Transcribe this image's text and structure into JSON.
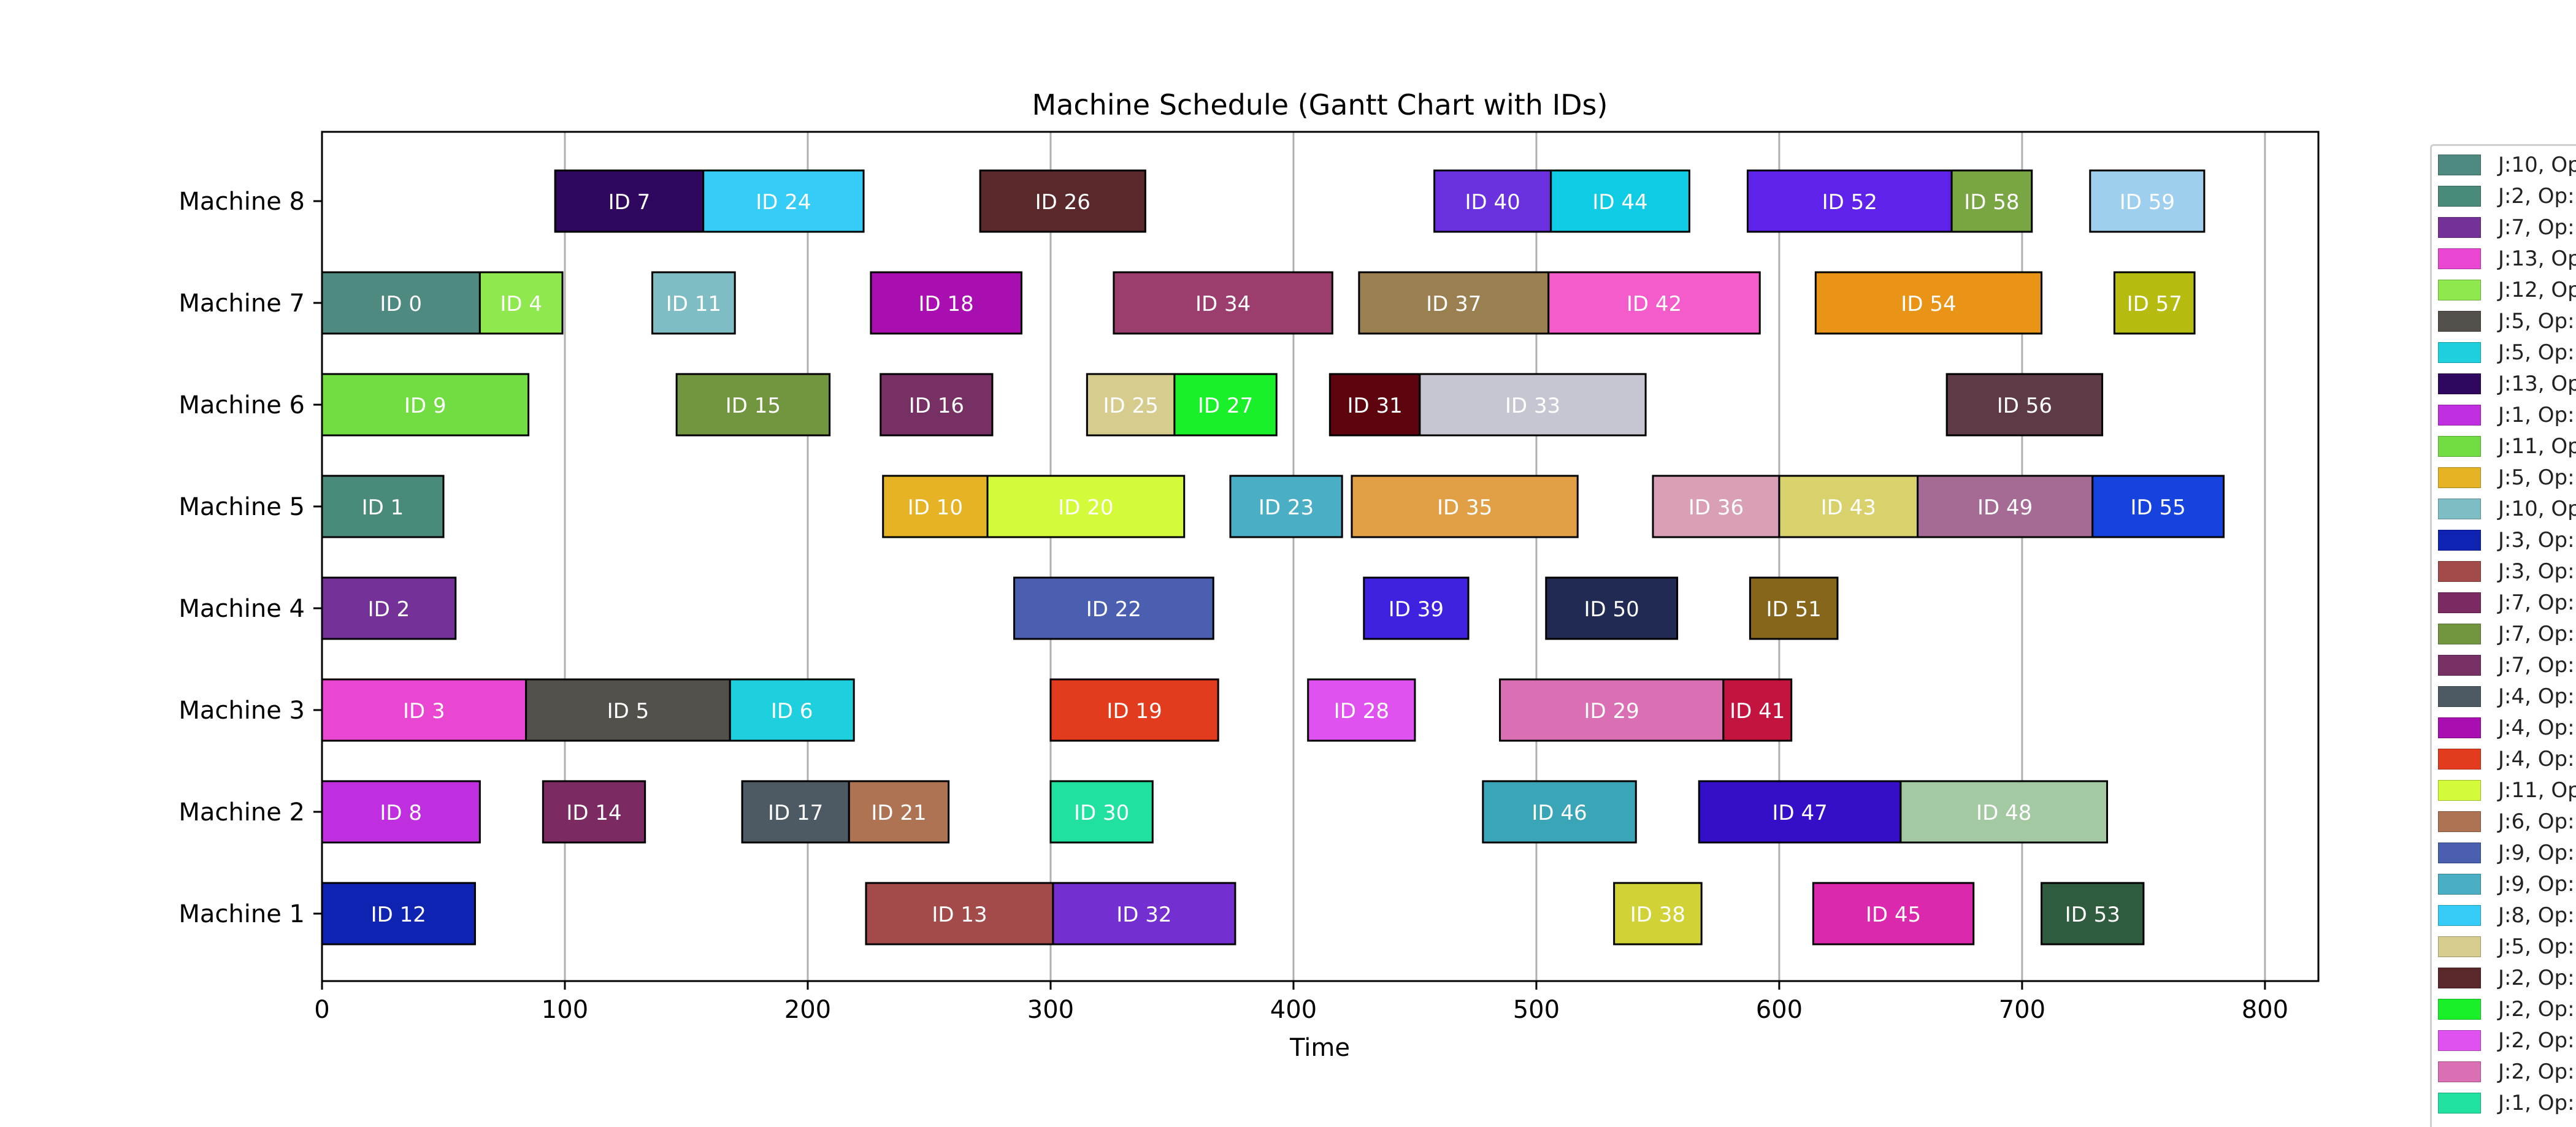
{
  "chart_data": {
    "type": "gantt",
    "title": "Machine Schedule (Gantt Chart with IDs)",
    "xlabel": "Time",
    "ylabel": "",
    "xlim": [
      0,
      822
    ],
    "xticks": [
      0,
      100,
      200,
      300,
      400,
      500,
      600,
      700,
      800
    ],
    "grid": "vertical",
    "machines": [
      "Machine 1",
      "Machine 2",
      "Machine 3",
      "Machine 4",
      "Machine 5",
      "Machine 6",
      "Machine 7",
      "Machine 8"
    ],
    "tasks": [
      {
        "label": "ID 0",
        "machine": "Machine 7",
        "start": 0,
        "end": 65,
        "color": "#4f8a80"
      },
      {
        "label": "ID 4",
        "machine": "Machine 7",
        "start": 65,
        "end": 99,
        "color": "#8fe84d"
      },
      {
        "label": "ID 11",
        "machine": "Machine 7",
        "start": 136,
        "end": 170,
        "color": "#7fbdc4"
      },
      {
        "label": "ID 18",
        "machine": "Machine 7",
        "start": 226,
        "end": 288,
        "color": "#a90fb0"
      },
      {
        "label": "ID 34",
        "machine": "Machine 7",
        "start": 326,
        "end": 416,
        "color": "#9b3e6e"
      },
      {
        "label": "ID 37",
        "machine": "Machine 7",
        "start": 427,
        "end": 505,
        "color": "#9a8050"
      },
      {
        "label": "ID 42",
        "machine": "Machine 7",
        "start": 505,
        "end": 592,
        "color": "#f45ccc"
      },
      {
        "label": "ID 54",
        "machine": "Machine 7",
        "start": 615,
        "end": 708,
        "color": "#e99417"
      },
      {
        "label": "ID 57",
        "machine": "Machine 7",
        "start": 738,
        "end": 771,
        "color": "#b5bb0f"
      },
      {
        "label": "ID 7",
        "machine": "Machine 8",
        "start": 96,
        "end": 157,
        "color": "#30075e"
      },
      {
        "label": "ID 24",
        "machine": "Machine 8",
        "start": 157,
        "end": 223,
        "color": "#35cdf7"
      },
      {
        "label": "ID 26",
        "machine": "Machine 8",
        "start": 271,
        "end": 339,
        "color": "#5a272b"
      },
      {
        "label": "ID 40",
        "machine": "Machine 8",
        "start": 458,
        "end": 506,
        "color": "#6a32df"
      },
      {
        "label": "ID 44",
        "machine": "Machine 8",
        "start": 506,
        "end": 563,
        "color": "#10cbe4"
      },
      {
        "label": "ID 52",
        "machine": "Machine 8",
        "start": 587,
        "end": 671,
        "color": "#5f22ea"
      },
      {
        "label": "ID 58",
        "machine": "Machine 8",
        "start": 671,
        "end": 704,
        "color": "#79a542"
      },
      {
        "label": "ID 59",
        "machine": "Machine 8",
        "start": 728,
        "end": 775,
        "color": "#9fcfee"
      },
      {
        "label": "ID 9",
        "machine": "Machine 6",
        "start": 0,
        "end": 85,
        "color": "#72dd43"
      },
      {
        "label": "ID 15",
        "machine": "Machine 6",
        "start": 146,
        "end": 209,
        "color": "#729540"
      },
      {
        "label": "ID 16",
        "machine": "Machine 6",
        "start": 230,
        "end": 276,
        "color": "#773064"
      },
      {
        "label": "ID 25",
        "machine": "Machine 6",
        "start": 315,
        "end": 351,
        "color": "#d6cc8d"
      },
      {
        "label": "ID 27",
        "machine": "Machine 6",
        "start": 351,
        "end": 393,
        "color": "#19f02a"
      },
      {
        "label": "ID 31",
        "machine": "Machine 6",
        "start": 415,
        "end": 452,
        "color": "#5d040e"
      },
      {
        "label": "ID 33",
        "machine": "Machine 6",
        "start": 452,
        "end": 545,
        "color": "#c6c6d3"
      },
      {
        "label": "ID 56",
        "machine": "Machine 6",
        "start": 669,
        "end": 733,
        "color": "#5d3a45"
      },
      {
        "label": "ID 1",
        "machine": "Machine 5",
        "start": 0,
        "end": 50,
        "color": "#4a8a7a"
      },
      {
        "label": "ID 10",
        "machine": "Machine 5",
        "start": 231,
        "end": 274,
        "color": "#e5b324"
      },
      {
        "label": "ID 20",
        "machine": "Machine 5",
        "start": 274,
        "end": 355,
        "color": "#d3fb3a"
      },
      {
        "label": "ID 23",
        "machine": "Machine 5",
        "start": 374,
        "end": 420,
        "color": "#4aaec4"
      },
      {
        "label": "ID 35",
        "machine": "Machine 5",
        "start": 424,
        "end": 517,
        "color": "#e19f46"
      },
      {
        "label": "ID 36",
        "machine": "Machine 5",
        "start": 548,
        "end": 600,
        "color": "#d99fb7"
      },
      {
        "label": "ID 43",
        "machine": "Machine 5",
        "start": 600,
        "end": 657,
        "color": "#d8d16c"
      },
      {
        "label": "ID 49",
        "machine": "Machine 5",
        "start": 657,
        "end": 729,
        "color": "#a56b94"
      },
      {
        "label": "ID 55",
        "machine": "Machine 5",
        "start": 729,
        "end": 783,
        "color": "#1642dd"
      },
      {
        "label": "ID 2",
        "machine": "Machine 4",
        "start": 0,
        "end": 55,
        "color": "#743298"
      },
      {
        "label": "ID 22",
        "machine": "Machine 4",
        "start": 285,
        "end": 367,
        "color": "#4a5fb0"
      },
      {
        "label": "ID 39",
        "machine": "Machine 4",
        "start": 429,
        "end": 472,
        "color": "#3e22e0"
      },
      {
        "label": "ID 50",
        "machine": "Machine 4",
        "start": 504,
        "end": 558,
        "color": "#202a52"
      },
      {
        "label": "ID 51",
        "machine": "Machine 4",
        "start": 588,
        "end": 624,
        "color": "#86661a"
      },
      {
        "label": "ID 3",
        "machine": "Machine 3",
        "start": 0,
        "end": 84,
        "color": "#e946d2"
      },
      {
        "label": "ID 5",
        "machine": "Machine 3",
        "start": 84,
        "end": 168,
        "color": "#534f4a"
      },
      {
        "label": "ID 6",
        "machine": "Machine 3",
        "start": 168,
        "end": 219,
        "color": "#1ed0de"
      },
      {
        "label": "ID 19",
        "machine": "Machine 3",
        "start": 300,
        "end": 369,
        "color": "#e23b1d"
      },
      {
        "label": "ID 28",
        "machine": "Machine 3",
        "start": 406,
        "end": 450,
        "color": "#e052f0"
      },
      {
        "label": "ID 29",
        "machine": "Machine 3",
        "start": 485,
        "end": 577,
        "color": "#da6fb4"
      },
      {
        "label": "ID 41",
        "machine": "Machine 3",
        "start": 577,
        "end": 605,
        "color": "#c3133f"
      },
      {
        "label": "ID 8",
        "machine": "Machine 2",
        "start": 0,
        "end": 65,
        "color": "#c02fdf"
      },
      {
        "label": "ID 14",
        "machine": "Machine 2",
        "start": 91,
        "end": 133,
        "color": "#7b2b61"
      },
      {
        "label": "ID 17",
        "machine": "Machine 2",
        "start": 173,
        "end": 217,
        "color": "#4d5a63"
      },
      {
        "label": "ID 21",
        "machine": "Machine 2",
        "start": 217,
        "end": 258,
        "color": "#ad7353"
      },
      {
        "label": "ID 30",
        "machine": "Machine 2",
        "start": 300,
        "end": 342,
        "color": "#20e1a0"
      },
      {
        "label": "ID 46",
        "machine": "Machine 2",
        "start": 478,
        "end": 541,
        "color": "#3aa5b7"
      },
      {
        "label": "ID 47",
        "machine": "Machine 2",
        "start": 567,
        "end": 650,
        "color": "#350fc7"
      },
      {
        "label": "ID 48",
        "machine": "Machine 2",
        "start": 650,
        "end": 735,
        "color": "#a3c9a2"
      },
      {
        "label": "ID 12",
        "machine": "Machine 1",
        "start": 0,
        "end": 63,
        "color": "#0f23b2"
      },
      {
        "label": "ID 13",
        "machine": "Machine 1",
        "start": 224,
        "end": 301,
        "color": "#a34a4a"
      },
      {
        "label": "ID 32",
        "machine": "Machine 1",
        "start": 301,
        "end": 376,
        "color": "#742fd1"
      },
      {
        "label": "ID 38",
        "machine": "Machine 1",
        "start": 532,
        "end": 568,
        "color": "#d1d236"
      },
      {
        "label": "ID 45",
        "machine": "Machine 1",
        "start": 614,
        "end": 680,
        "color": "#db28ad"
      },
      {
        "label": "ID 53",
        "machine": "Machine 1",
        "start": 708,
        "end": 750,
        "color": "#2f5b3e"
      }
    ],
    "legend": {
      "placement": "right",
      "entries": [
        {
          "label": "J:10, Op",
          "color": "#4f8a80"
        },
        {
          "label": "J:2, Op:",
          "color": "#4a8a7a"
        },
        {
          "label": "J:7, Op:",
          "color": "#743298"
        },
        {
          "label": "J:13, Op",
          "color": "#e946d2"
        },
        {
          "label": "J:12, Op",
          "color": "#8fe84d"
        },
        {
          "label": "J:5, Op:",
          "color": "#534f4a"
        },
        {
          "label": "J:5, Op:",
          "color": "#1ed0de"
        },
        {
          "label": "J:13, Op",
          "color": "#30075e"
        },
        {
          "label": "J:1, Op:",
          "color": "#c02fdf"
        },
        {
          "label": "J:11, Op",
          "color": "#72dd43"
        },
        {
          "label": "J:5, Op:",
          "color": "#e5b324"
        },
        {
          "label": "J:10, Op",
          "color": "#7fbdc4"
        },
        {
          "label": "J:3, Op:",
          "color": "#0f23b2"
        },
        {
          "label": "J:3, Op:",
          "color": "#a34a4a"
        },
        {
          "label": "J:7, Op:",
          "color": "#7b2b61"
        },
        {
          "label": "J:7, Op:",
          "color": "#729540"
        },
        {
          "label": "J:7, Op:",
          "color": "#773064"
        },
        {
          "label": "J:4, Op:",
          "color": "#4d5a63"
        },
        {
          "label": "J:4, Op:",
          "color": "#a90fb0"
        },
        {
          "label": "J:4, Op:",
          "color": "#e23b1d"
        },
        {
          "label": "J:11, Op",
          "color": "#d3fb3a"
        },
        {
          "label": "J:6, Op:",
          "color": "#ad7353"
        },
        {
          "label": "J:9, Op:",
          "color": "#4a5fb0"
        },
        {
          "label": "J:9, Op:",
          "color": "#4aaec4"
        },
        {
          "label": "J:8, Op:",
          "color": "#35cdf7"
        },
        {
          "label": "J:5, Op:",
          "color": "#d6cc8d"
        },
        {
          "label": "J:2, Op:",
          "color": "#5a272b"
        },
        {
          "label": "J:2, Op:",
          "color": "#19f02a"
        },
        {
          "label": "J:2, Op:",
          "color": "#e052f0"
        },
        {
          "label": "J:2, Op:",
          "color": "#da6fb4"
        },
        {
          "label": "J:1, Op:",
          "color": "#20e1a0"
        }
      ]
    }
  }
}
